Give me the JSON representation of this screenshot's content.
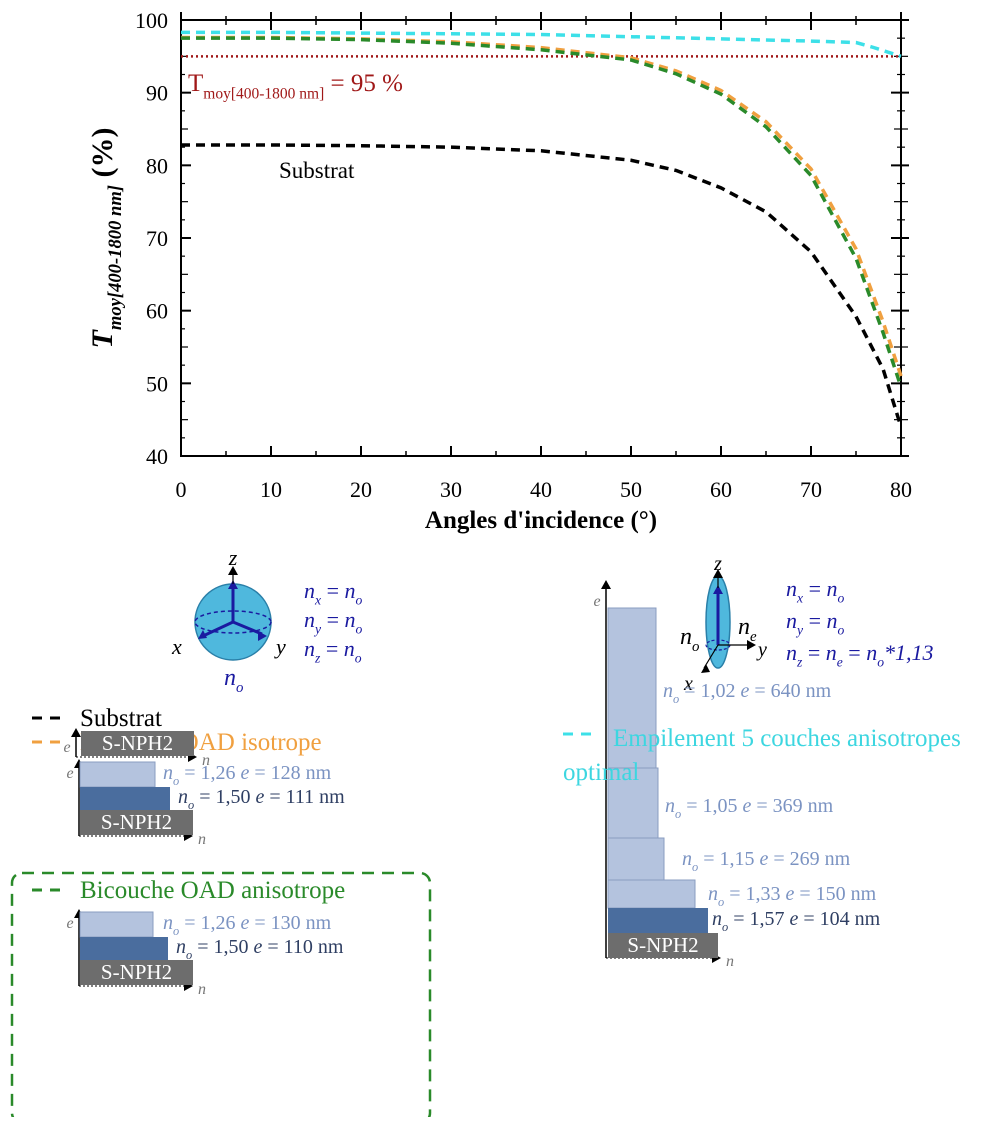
{
  "chart_data": {
    "type": "line",
    "xlabel": "Angles d'incidence (°)",
    "ylabel": {
      "main": "T",
      "sub": "moy[400-1800 nm]",
      "unit": " (%)"
    },
    "xlim": [
      0,
      80
    ],
    "ylim": [
      40,
      100
    ],
    "xticks": [
      0,
      10,
      20,
      30,
      40,
      50,
      60,
      70,
      80
    ],
    "yticks": [
      40,
      50,
      60,
      70,
      80,
      90,
      100
    ],
    "series": [
      {
        "name": "Substrat",
        "color": "#000000",
        "x": [
          0,
          10,
          20,
          30,
          40,
          50,
          55,
          60,
          65,
          70,
          75,
          78,
          80
        ],
        "values": [
          82.8,
          82.8,
          82.7,
          82.5,
          82.0,
          80.7,
          79.3,
          76.9,
          73.6,
          68.1,
          59.2,
          52.0,
          44.0
        ]
      },
      {
        "name": "Bicouche OAD isotrope",
        "color": "#f0a040",
        "x": [
          0,
          10,
          20,
          30,
          40,
          50,
          55,
          60,
          65,
          70,
          75,
          78,
          80
        ],
        "values": [
          97.6,
          97.6,
          97.4,
          97.0,
          96.2,
          94.8,
          93.0,
          90.3,
          86.0,
          79.5,
          68.5,
          58.5,
          51.0
        ]
      },
      {
        "name": "Bicouche OAD anisotrope",
        "color": "#2a8a2a",
        "x": [
          0,
          10,
          20,
          30,
          40,
          50,
          55,
          60,
          65,
          70,
          75,
          78,
          80
        ],
        "values": [
          97.5,
          97.5,
          97.3,
          96.8,
          95.9,
          94.5,
          92.6,
          89.8,
          85.3,
          78.6,
          67.2,
          57.0,
          49.5
        ]
      },
      {
        "name": "Empilement 5 couches anisotropes optimal",
        "color": "#3de0e8",
        "x": [
          0,
          10,
          20,
          30,
          40,
          50,
          60,
          70,
          75,
          77,
          80
        ],
        "values": [
          98.3,
          98.3,
          98.2,
          98.1,
          98.0,
          97.7,
          97.4,
          97.1,
          96.9,
          96.2,
          95.0
        ]
      }
    ],
    "reference_line": {
      "value": 95,
      "color": "#a01818",
      "label": {
        "main": "T",
        "sub": "moy[400-1800 nm]",
        "rest": " = 95 %"
      }
    }
  },
  "diagrams": {
    "symbols": {
      "n": "n",
      "o": "o",
      "e": "e",
      "x": "x",
      "y": "y",
      "z": "z",
      "eq": " = ",
      "gap": "  "
    },
    "substrate": "S-NPH2",
    "anisotropic_factor": "*1,13",
    "isotrope_layers": [
      {
        "index": "1,26",
        "thickness": "128 nm"
      },
      {
        "index": "1,50",
        "thickness": "111 nm"
      }
    ],
    "anisotrope_layers": [
      {
        "index": "1,26",
        "thickness": "130 nm"
      },
      {
        "index": "1,50",
        "thickness": "110 nm"
      }
    ],
    "stack_layers": [
      {
        "index": "1,02",
        "thickness": "640 nm"
      },
      {
        "index": "1,05",
        "thickness": "369 nm"
      },
      {
        "index": "1,15",
        "thickness": "269 nm"
      },
      {
        "index": "1,33",
        "thickness": "150 nm"
      },
      {
        "index": "1,57",
        "thickness": "104 nm"
      }
    ]
  }
}
